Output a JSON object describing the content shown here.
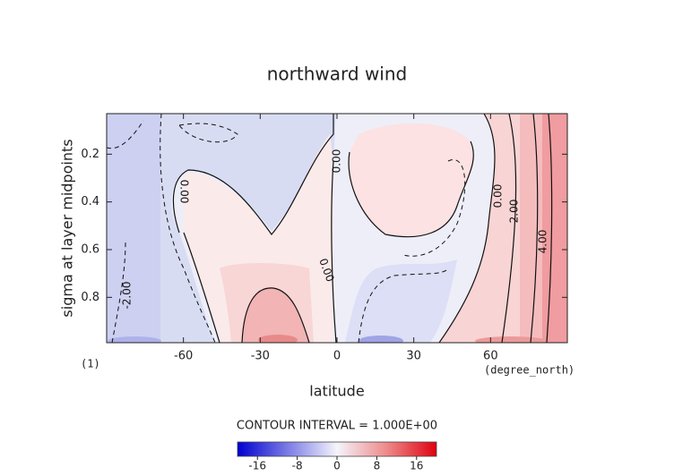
{
  "chart_data": {
    "type": "contour",
    "title": "northward wind",
    "xlabel": "latitude",
    "ylabel": "sigma at layer midpoints",
    "xunit": "(degree_north)",
    "panel_label": "(1)",
    "xlim": [
      -90,
      90
    ],
    "xticks": [
      -60,
      -30,
      0,
      30,
      60
    ],
    "ylim": [
      0.99,
      0.03
    ],
    "yticks": [
      0.2,
      0.4,
      0.6,
      0.8
    ],
    "contour_labels": [
      "0.00",
      "0.00",
      "0.00",
      "0.00",
      "2.00",
      "4.00",
      "-2.00"
    ],
    "colorbar": {
      "title": "CONTOUR INTERVAL = 1.000E+00",
      "lim": [
        -20,
        20
      ],
      "ticks": [
        -16,
        -8,
        0,
        8,
        16
      ]
    }
  }
}
